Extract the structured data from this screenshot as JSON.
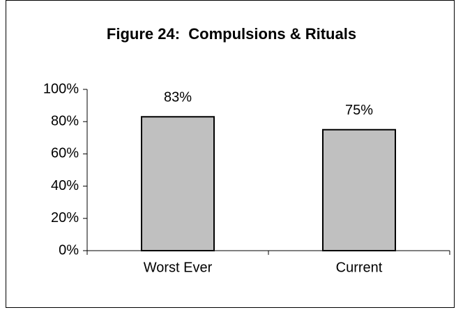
{
  "chart_data": {
    "type": "bar",
    "title": "Figure 24:  Compulsions & Rituals",
    "categories": [
      "Worst Ever",
      "Current"
    ],
    "values": [
      83,
      75
    ],
    "value_labels": [
      "83%",
      "75%"
    ],
    "color": "#c0c0c0",
    "ylim": [
      0,
      100
    ],
    "yticks": [
      {
        "value": 0,
        "label": "0%"
      },
      {
        "value": 20,
        "label": "20%"
      },
      {
        "value": 40,
        "label": "40%"
      },
      {
        "value": 60,
        "label": "60%"
      },
      {
        "value": 80,
        "label": "80%"
      },
      {
        "value": 100,
        "label": "100%"
      }
    ],
    "grid": false
  }
}
